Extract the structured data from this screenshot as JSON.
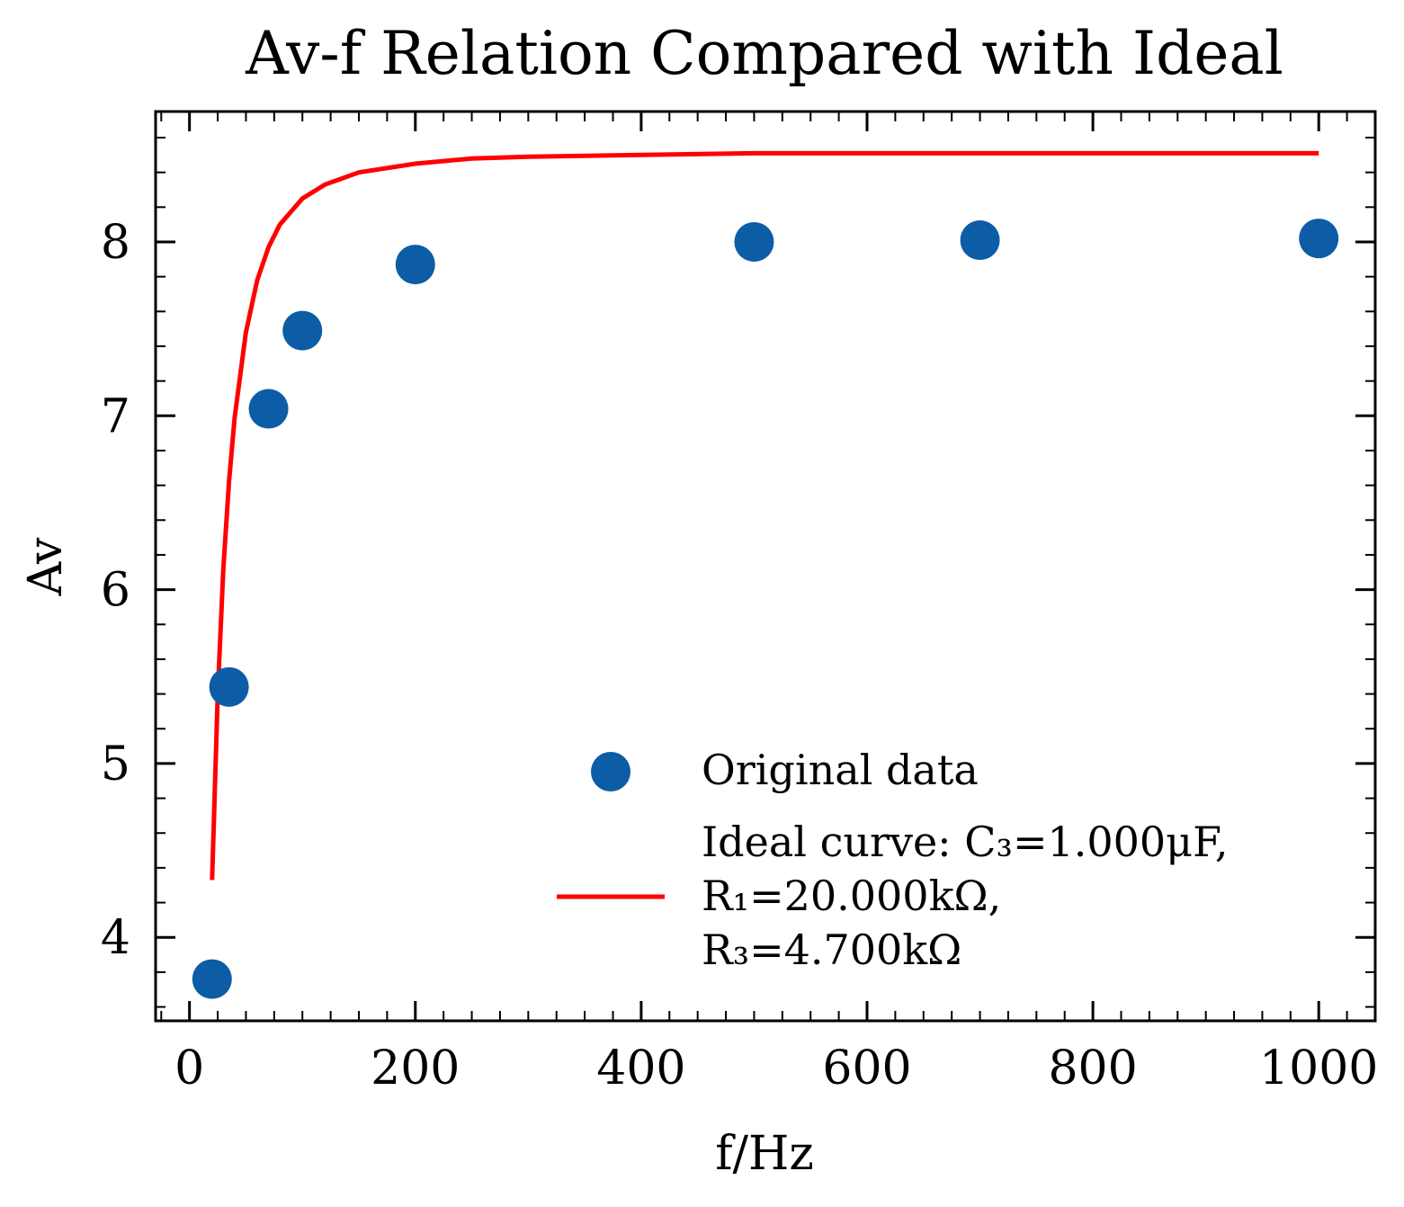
{
  "chart_data": {
    "type": "scatter",
    "title": "Av-f Relation Compared with Ideal",
    "xlabel": "f/Hz",
    "ylabel": "Av",
    "xlim": [
      -30,
      1050
    ],
    "ylim": [
      3.52,
      8.75
    ],
    "xticks": [
      0,
      200,
      400,
      600,
      800,
      1000
    ],
    "yticks": [
      4,
      5,
      6,
      7,
      8
    ],
    "grid": false,
    "legend_position": "lower-right",
    "series": [
      {
        "name": "Original data",
        "kind": "scatter",
        "color": "#0C5DA5",
        "x": [
          20,
          35,
          70,
          100,
          200,
          500,
          700,
          1000
        ],
        "y": [
          3.76,
          5.44,
          7.04,
          7.49,
          7.87,
          8.0,
          8.01,
          8.02
        ]
      },
      {
        "name": "Ideal curve: C3=1.000μF, R1=20.000kΩ, R3=4.700kΩ",
        "kind": "line",
        "color": "#FF0000",
        "x": [
          20,
          25,
          30,
          35,
          40,
          50,
          60,
          70,
          80,
          100,
          120,
          150,
          200,
          250,
          300,
          400,
          500,
          600,
          700,
          800,
          900,
          1000
        ],
        "y": [
          4.33,
          5.4,
          6.12,
          6.62,
          6.99,
          7.48,
          7.78,
          7.97,
          8.1,
          8.25,
          8.33,
          8.4,
          8.45,
          8.48,
          8.49,
          8.5,
          8.51,
          8.51,
          8.51,
          8.51,
          8.51,
          8.51
        ]
      }
    ],
    "legend": {
      "scatter_label": "Original data",
      "line_label_lines": [
        "Ideal curve: C₃=1.000μF,",
        "R₁=20.000kΩ,",
        "R₃=4.700kΩ"
      ]
    }
  }
}
